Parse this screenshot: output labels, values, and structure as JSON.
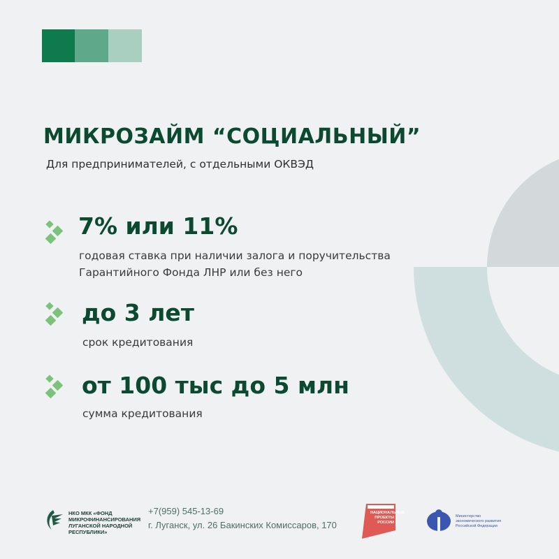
{
  "colors": {
    "background": "#eff1f3",
    "accent_dark": "#0b4a31",
    "block_1": "#0f7a4b",
    "block_2": "#5fa88a",
    "block_3": "#a8cfc0",
    "bullet": "#7bc27a",
    "arc_gray": "#d3d9da",
    "arc_teal": "#cfdfdf",
    "np_logo": "#e05a55",
    "ministry_logo": "#3a56b0"
  },
  "header": {
    "title": "МИКРОЗАЙМ “СОЦИАЛЬНЫЙ”",
    "subtitle": "Для предпринимателей, с отдельными ОКВЭД"
  },
  "items": [
    {
      "icon": "diamond-cluster-icon",
      "value": "7% или 11%",
      "desc_lines": [
        "годовая ставка при наличии залога и поручительства",
        "Гарантийного Фонда ЛНР или без него"
      ]
    },
    {
      "icon": "diamond-cluster-icon",
      "value": "до 3 лет",
      "desc_lines": [
        "срок кредитования"
      ]
    },
    {
      "icon": "diamond-cluster-icon",
      "value": "от 100 тыс до 5 млн",
      "desc_lines": [
        "сумма кредитования"
      ]
    }
  ],
  "footer": {
    "org_lines": [
      "НКО МКК «ФОНД",
      "МИКРОФИНАНСИРОВАНИЯ",
      "ЛУГАНСКОЙ НАРОДНОЙ",
      "РЕСПУБЛИКИ»"
    ],
    "phone": "+7(959) 545-13-69",
    "address": "г. Луганск, ул. 26 Бакинских Комиссаров, 170",
    "np_logo_text": "НАЦИОНАЛЬНЫЕ ПРОЕКТЫ РОССИИ",
    "ministry_text": "Министерство экономического развития Российской Федерации"
  }
}
